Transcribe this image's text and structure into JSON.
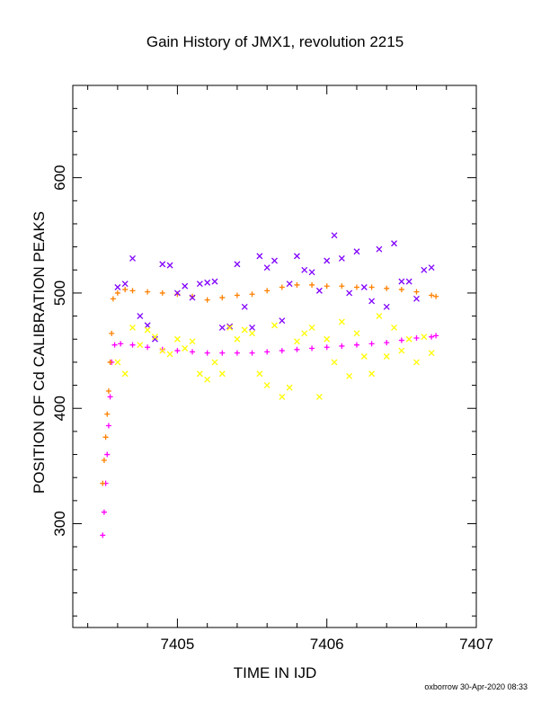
{
  "chart_data": {
    "type": "scatter",
    "title": "Gain History of JMX1, revolution 2215",
    "xlabel": "TIME IN IJD",
    "ylabel": "POSITION OF Cd CALIBRATION PEAKS",
    "xlim": [
      7404.3,
      7407.0
    ],
    "ylim": [
      210,
      680
    ],
    "x_ticks": [
      7405,
      7406,
      7407
    ],
    "y_ticks": [
      300,
      400,
      500,
      600
    ],
    "x_tick_labels": [
      "7405",
      "7406",
      "7407"
    ],
    "y_tick_labels": [
      "300",
      "400",
      "500",
      "600"
    ],
    "grid": false,
    "legend": "none",
    "series": [
      {
        "marker": "plus",
        "color": "#ff00ff",
        "x": [
          7404.5,
          7404.51,
          7404.52,
          7404.53,
          7404.54,
          7404.55,
          7404.56,
          7404.58,
          7404.62,
          7404.7,
          7404.8,
          7404.9,
          7405.0,
          7405.1,
          7405.2,
          7405.3,
          7405.4,
          7405.5,
          7405.6,
          7405.7,
          7405.8,
          7405.9,
          7406.0,
          7406.1,
          7406.2,
          7406.3,
          7406.4,
          7406.5,
          7406.6,
          7406.7,
          7406.73
        ],
        "y": [
          290,
          310,
          335,
          360,
          385,
          410,
          440,
          455,
          456,
          455,
          453,
          451,
          450,
          449,
          448,
          448,
          448,
          448,
          449,
          450,
          451,
          452,
          453,
          454,
          455,
          456,
          457,
          459,
          461,
          462,
          463
        ]
      },
      {
        "marker": "plus",
        "color": "#ff8000",
        "x": [
          7404.5,
          7404.51,
          7404.52,
          7404.53,
          7404.54,
          7404.55,
          7404.56,
          7404.57,
          7404.6,
          7404.65,
          7404.7,
          7404.8,
          7404.9,
          7405.0,
          7405.1,
          7405.2,
          7405.3,
          7405.4,
          7405.5,
          7405.6,
          7405.7,
          7405.8,
          7405.9,
          7406.0,
          7406.1,
          7406.2,
          7406.3,
          7406.4,
          7406.5,
          7406.6,
          7406.7,
          7406.73
        ],
        "y": [
          335,
          355,
          375,
          395,
          415,
          440,
          465,
          495,
          500,
          503,
          502,
          501,
          500,
          499,
          497,
          494,
          496,
          498,
          499,
          502,
          505,
          507,
          507,
          506,
          506,
          505,
          505,
          504,
          503,
          501,
          498,
          497
        ]
      },
      {
        "marker": "cross",
        "color": "#8000ff",
        "x": [
          7404.6,
          7404.65,
          7404.7,
          7404.75,
          7404.8,
          7404.85,
          7404.9,
          7404.95,
          7405.0,
          7405.05,
          7405.1,
          7405.15,
          7405.2,
          7405.25,
          7405.3,
          7405.35,
          7405.4,
          7405.45,
          7405.5,
          7405.55,
          7405.6,
          7405.65,
          7405.7,
          7405.75,
          7405.8,
          7405.85,
          7405.9,
          7405.95,
          7406.0,
          7406.05,
          7406.1,
          7406.15,
          7406.2,
          7406.25,
          7406.3,
          7406.35,
          7406.4,
          7406.45,
          7406.5,
          7406.55,
          7406.6,
          7406.65,
          7406.7
        ],
        "y": [
          505,
          508,
          530,
          480,
          472,
          460,
          525,
          524,
          500,
          506,
          496,
          508,
          509,
          510,
          470,
          471,
          525,
          488,
          470,
          532,
          522,
          528,
          476,
          508,
          532,
          520,
          518,
          502,
          528,
          550,
          530,
          500,
          536,
          505,
          493,
          538,
          488,
          543,
          510,
          510,
          495,
          520,
          522
        ]
      },
      {
        "marker": "cross",
        "color": "#ffff00",
        "x": [
          7404.6,
          7404.65,
          7404.7,
          7404.75,
          7404.8,
          7404.85,
          7404.9,
          7404.95,
          7405.0,
          7405.05,
          7405.1,
          7405.15,
          7405.2,
          7405.25,
          7405.3,
          7405.35,
          7405.4,
          7405.45,
          7405.5,
          7405.55,
          7405.6,
          7405.65,
          7405.7,
          7405.75,
          7405.8,
          7405.85,
          7405.9,
          7405.95,
          7406.0,
          7406.05,
          7406.1,
          7406.15,
          7406.2,
          7406.25,
          7406.3,
          7406.35,
          7406.4,
          7406.45,
          7406.5,
          7406.55,
          7406.6,
          7406.65,
          7406.7
        ],
        "y": [
          440,
          430,
          470,
          455,
          468,
          462,
          450,
          447,
          460,
          452,
          458,
          430,
          425,
          440,
          430,
          470,
          460,
          468,
          465,
          430,
          420,
          472,
          410,
          418,
          458,
          465,
          470,
          410,
          460,
          440,
          475,
          428,
          465,
          445,
          430,
          480,
          445,
          470,
          450,
          460,
          440,
          462,
          448
        ]
      }
    ],
    "footer": "oxborrow 30-Apr-2020 08:33"
  }
}
